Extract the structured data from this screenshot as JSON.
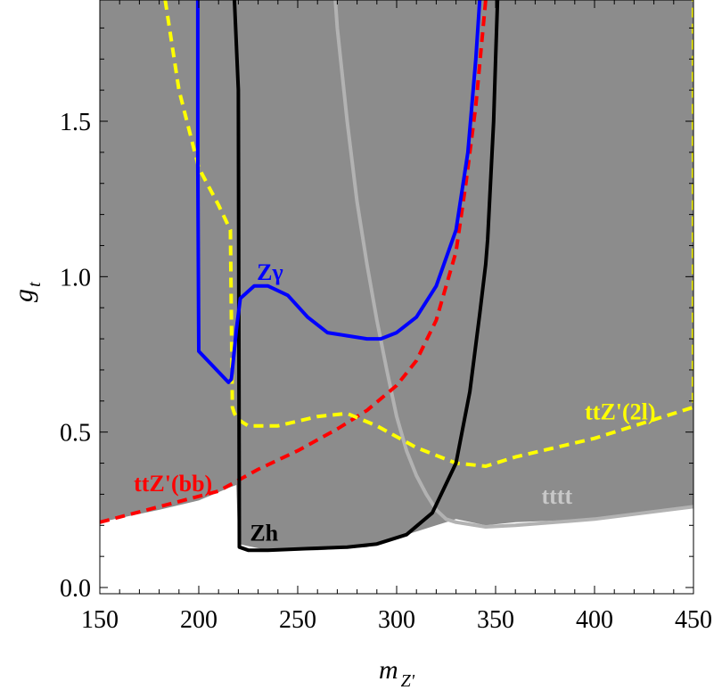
{
  "chart_data": {
    "type": "line",
    "xlabel": {
      "main": "m",
      "sub": "Z'"
    },
    "ylabel": {
      "main": "g",
      "sub": "t"
    },
    "xlim": [
      150,
      450
    ],
    "ylim": [
      -0.02,
      1.89
    ],
    "x_ticks": [
      150,
      200,
      250,
      300,
      350,
      400,
      450
    ],
    "x_tick_labels": [
      "150",
      "200",
      "250",
      "300",
      "350",
      "400",
      "450"
    ],
    "y_ticks": [
      0.0,
      0.5,
      1.0,
      1.5
    ],
    "y_tick_labels": [
      "0.0",
      "0.5",
      "1.0",
      "1.5"
    ],
    "grid": false,
    "excluded_region": {
      "color": "#8c8c8c",
      "boundary": [
        [
          150,
          0.21
        ],
        [
          180,
          0.25
        ],
        [
          200,
          0.28
        ],
        [
          215,
          0.32
        ],
        [
          219,
          0.33
        ],
        [
          220,
          0.14
        ],
        [
          235,
          0.12
        ],
        [
          260,
          0.12
        ],
        [
          285,
          0.13
        ],
        [
          300,
          0.16
        ],
        [
          320,
          0.2
        ],
        [
          330,
          0.22
        ],
        [
          345,
          0.2
        ],
        [
          360,
          0.21
        ],
        [
          400,
          0.22
        ],
        [
          450,
          0.26
        ]
      ]
    },
    "series": [
      {
        "name": "Zγ",
        "color": "#0000ff",
        "dash": "solid",
        "x": [
          199.5,
          199.5,
          200,
          215,
          216.5,
          219,
          221,
          228,
          235,
          245,
          255,
          265,
          275,
          285,
          292,
          300,
          310,
          320,
          330,
          336,
          340,
          342
        ],
        "y": [
          1.89,
          1.38,
          0.76,
          0.66,
          0.67,
          0.83,
          0.93,
          0.97,
          0.97,
          0.94,
          0.87,
          0.82,
          0.81,
          0.8,
          0.8,
          0.82,
          0.87,
          0.97,
          1.15,
          1.4,
          1.7,
          1.89
        ]
      },
      {
        "name": "Zh",
        "color": "#000000",
        "dash": "solid",
        "x": [
          218,
          220,
          220.5,
          225,
          235,
          255,
          275,
          290,
          305,
          318,
          330,
          337,
          342,
          345,
          346,
          349,
          350,
          351
        ],
        "y": [
          1.89,
          1.6,
          0.13,
          0.12,
          0.12,
          0.125,
          0.13,
          0.14,
          0.17,
          0.24,
          0.4,
          0.63,
          0.88,
          1.04,
          1.12,
          1.5,
          1.7,
          1.89
        ]
      },
      {
        "name": "tttt",
        "color": "#b2b2b2",
        "dash": "solid",
        "x": [
          269,
          270,
          275,
          280,
          285,
          290,
          295,
          300,
          305,
          310,
          315,
          320,
          325,
          330,
          345,
          360,
          400,
          450
        ],
        "y": [
          1.89,
          1.8,
          1.5,
          1.24,
          1.04,
          0.86,
          0.7,
          0.55,
          0.44,
          0.36,
          0.3,
          0.25,
          0.22,
          0.21,
          0.195,
          0.2,
          0.22,
          0.26
        ]
      },
      {
        "name": "ttZ'(bb)",
        "color": "#ff0000",
        "dash": "dashed",
        "x": [
          150,
          180,
          210,
          230,
          250,
          270,
          285,
          300,
          310,
          320,
          330,
          335,
          340,
          345
        ],
        "y": [
          0.21,
          0.26,
          0.31,
          0.38,
          0.44,
          0.51,
          0.57,
          0.65,
          0.73,
          0.86,
          1.08,
          1.3,
          1.55,
          1.89
        ]
      },
      {
        "name": "ttZ'(2l)",
        "color": "#ffff00",
        "dash": "dashed",
        "x": [
          183,
          190,
          200,
          210,
          216,
          217,
          218,
          220,
          225,
          240,
          260,
          275,
          290,
          310,
          330,
          345,
          360,
          400,
          450,
          450
        ],
        "y": [
          1.89,
          1.6,
          1.35,
          1.23,
          1.15,
          0.58,
          0.56,
          0.54,
          0.52,
          0.52,
          0.55,
          0.56,
          0.52,
          0.45,
          0.4,
          0.39,
          0.42,
          0.48,
          0.58,
          1.89
        ]
      }
    ],
    "annotations": [
      {
        "text": "Zγ",
        "color": "#0000ff",
        "x": 236,
        "y": 0.99
      },
      {
        "text": "Zh",
        "color": "#000000",
        "x": 233,
        "y": 0.15
      },
      {
        "text": "tttt",
        "color": "#c8c8c8",
        "x": 381,
        "y": 0.27
      },
      {
        "text": "ttZ'(bb)",
        "color": "#ff0000",
        "x": 187,
        "y": 0.31
      },
      {
        "text": "ttZ'(2l)",
        "color": "#ffff00",
        "x": 413,
        "y": 0.54
      }
    ]
  }
}
